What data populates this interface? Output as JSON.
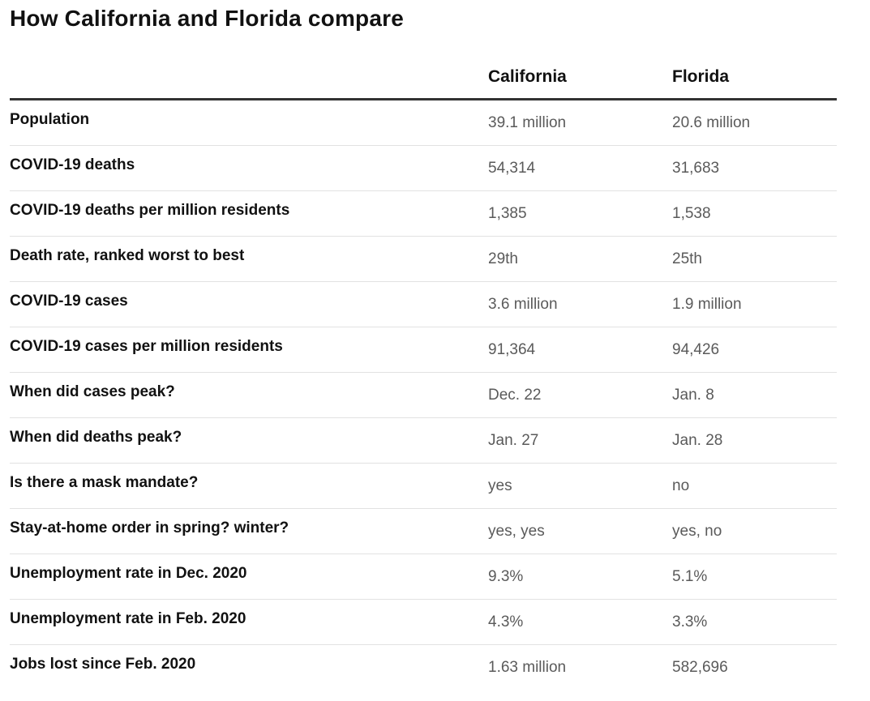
{
  "chart_data": {
    "type": "table",
    "title": "How California and Florida compare",
    "columns": [
      "",
      "California",
      "Florida"
    ],
    "rows": [
      {
        "label": "Population",
        "values": [
          "39.1 million",
          "20.6 million"
        ]
      },
      {
        "label": "COVID-19 deaths",
        "values": [
          "54,314",
          "31,683"
        ]
      },
      {
        "label": "COVID-19 deaths per million residents",
        "values": [
          "1,385",
          "1,538"
        ]
      },
      {
        "label": "Death rate, ranked worst to best",
        "values": [
          "29th",
          "25th"
        ]
      },
      {
        "label": "COVID-19 cases",
        "values": [
          "3.6 million",
          "1.9 million"
        ]
      },
      {
        "label": "COVID-19 cases per million residents",
        "values": [
          "91,364",
          "94,426"
        ]
      },
      {
        "label": "When did cases peak?",
        "values": [
          "Dec. 22",
          "Jan. 8"
        ]
      },
      {
        "label": "When did deaths peak?",
        "values": [
          "Jan. 27",
          "Jan. 28"
        ]
      },
      {
        "label": "Is there a mask mandate?",
        "values": [
          "yes",
          "no"
        ]
      },
      {
        "label": "Stay-at-home order in spring? winter?",
        "values": [
          "yes, yes",
          "yes, no"
        ]
      },
      {
        "label": "Unemployment rate in Dec. 2020",
        "values": [
          "9.3%",
          "5.1%"
        ]
      },
      {
        "label": "Unemployment rate in Feb. 2020",
        "values": [
          "4.3%",
          "3.3%"
        ]
      },
      {
        "label": "Jobs lost since Feb. 2020",
        "values": [
          "1.63 million",
          "582,696"
        ]
      }
    ]
  }
}
